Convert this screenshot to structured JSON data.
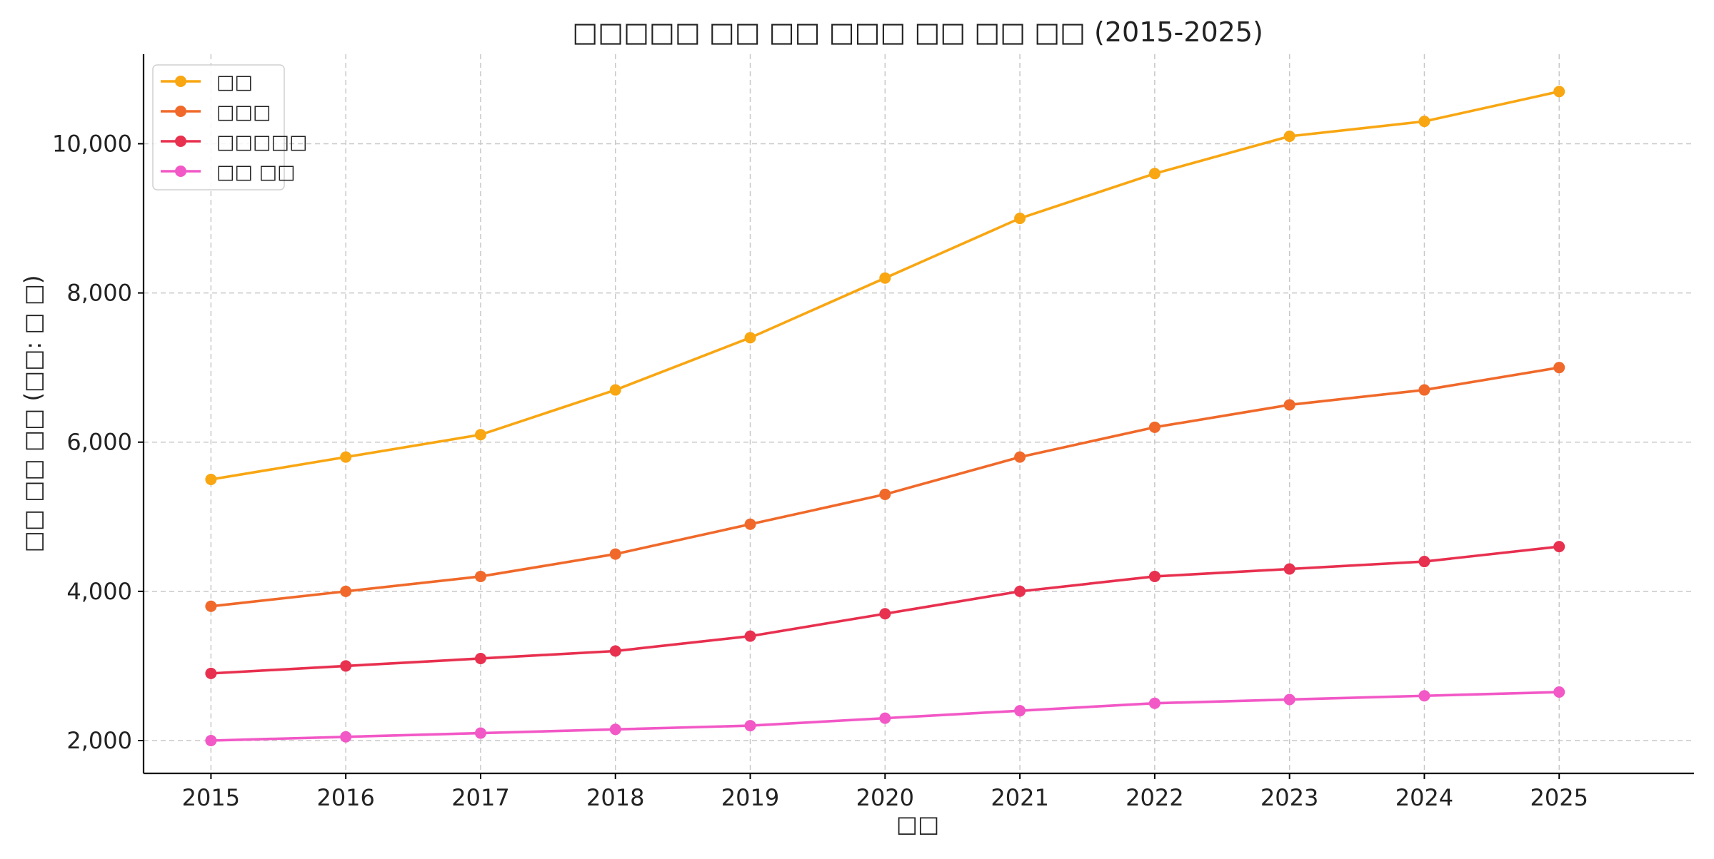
{
  "chart_data": {
    "type": "line",
    "title": "□□□□□ □□ □□ □□□ □□ □□ □□ (2015-2025)",
    "xlabel": "□□",
    "ylabel": "□□ □□ □□ (□□: □ □)",
    "x": [
      2015,
      2016,
      2017,
      2018,
      2019,
      2020,
      2021,
      2022,
      2023,
      2024,
      2025
    ],
    "xlim": [
      2014.5,
      2026.0
    ],
    "ylim": [
      1560,
      11200
    ],
    "yticks": [
      2000,
      4000,
      6000,
      8000,
      10000
    ],
    "ytick_labels": [
      "2,000",
      "4,000",
      "6,000",
      "8,000",
      "10,000"
    ],
    "xtick_labels": [
      "2015",
      "2016",
      "2017",
      "2018",
      "2019",
      "2020",
      "2021",
      "2022",
      "2023",
      "2024",
      "2025"
    ],
    "grid": true,
    "legend_position": "top-left",
    "series": [
      {
        "name": "□□",
        "color": "#f8a612",
        "values": [
          5500,
          5800,
          6100,
          6700,
          7400,
          8200,
          9000,
          9600,
          10100,
          10300,
          10700
        ]
      },
      {
        "name": "□□□",
        "color": "#f0692a",
        "values": [
          3800,
          4000,
          4200,
          4500,
          4900,
          5300,
          5800,
          6200,
          6500,
          6700,
          7000
        ]
      },
      {
        "name": "□□□□□",
        "color": "#e8304f",
        "values": [
          2900,
          3000,
          3100,
          3200,
          3400,
          3700,
          4000,
          4200,
          4300,
          4400,
          4600
        ]
      },
      {
        "name": "□□ □□",
        "color": "#f258c6",
        "values": [
          2000,
          2050,
          2100,
          2150,
          2200,
          2300,
          2400,
          2500,
          2550,
          2600,
          2650
        ]
      }
    ]
  }
}
